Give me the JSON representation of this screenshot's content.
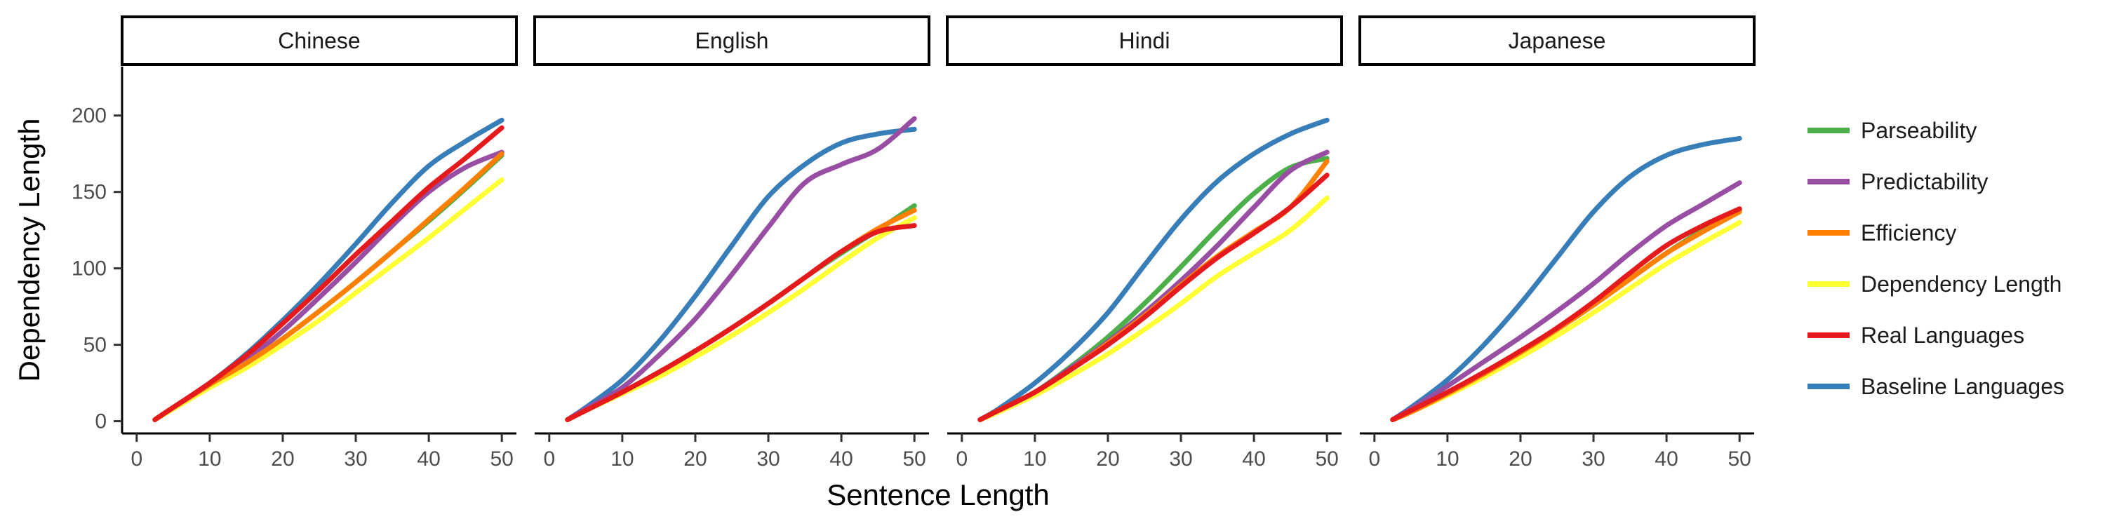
{
  "chart_data": {
    "type": "line",
    "xlabel": "Sentence Length",
    "ylabel": "Dependency Length",
    "xlim": [
      -2,
      52
    ],
    "ylim": [
      -8,
      232
    ],
    "x_ticks": [
      0,
      10,
      20,
      30,
      40,
      50
    ],
    "y_ticks": [
      0,
      50,
      100,
      150,
      200
    ],
    "grid": false,
    "legend_position": "right",
    "legend": [
      {
        "name": "Parseability",
        "color": "#4daf4a"
      },
      {
        "name": "Predictability",
        "color": "#984ea3"
      },
      {
        "name": "Efficiency",
        "color": "#ff7f00"
      },
      {
        "name": "Dependency Length",
        "color": "#ffff33"
      },
      {
        "name": "Real Languages",
        "color": "#e41a1c"
      },
      {
        "name": "Baseline Languages",
        "color": "#377eb8"
      }
    ],
    "draw_order": [
      "Baseline Languages",
      "Dependency Length",
      "Parseability",
      "Predictability",
      "Efficiency",
      "Real Languages"
    ],
    "x": [
      2.5,
      5,
      10,
      15,
      20,
      25,
      30,
      35,
      40,
      45,
      50
    ],
    "panels": [
      {
        "label": "Chinese",
        "series": [
          {
            "name": "Parseability",
            "values": [
              1,
              9,
              24,
              38,
              54,
              72,
              91,
              111,
              131,
              152,
              174
            ]
          },
          {
            "name": "Predictability",
            "values": [
              1,
              9,
              24,
              40,
              59,
              81,
              104,
              128,
              150,
              166,
              176
            ]
          },
          {
            "name": "Efficiency",
            "values": [
              1,
              9,
              24,
              38,
              54,
              72,
              91,
              111,
              132,
              153,
              175
            ]
          },
          {
            "name": "Dependency Length",
            "values": [
              1,
              8,
              22,
              35,
              50,
              66,
              84,
              102,
              120,
              139,
              158
            ]
          },
          {
            "name": "Real Languages",
            "values": [
              1,
              9,
              25,
              43,
              64,
              86,
              109,
              131,
              153,
              172,
              192
            ]
          },
          {
            "name": "Baseline Languages",
            "values": [
              1,
              9,
              25,
              44,
              66,
              90,
              116,
              143,
              167,
              183,
              197
            ]
          }
        ]
      },
      {
        "label": "English",
        "series": [
          {
            "name": "Parseability",
            "values": [
              1,
              7,
              19,
              32,
              46,
              61,
              77,
              94,
              110,
              125,
              141
            ]
          },
          {
            "name": "Predictability",
            "values": [
              1,
              8,
              22,
              43,
              67,
              96,
              127,
              156,
              168,
              178,
              198
            ]
          },
          {
            "name": "Efficiency",
            "values": [
              1,
              7,
              19,
              32,
              46,
              61,
              77,
              94,
              111,
              126,
              138
            ]
          },
          {
            "name": "Dependency Length",
            "values": [
              1,
              7,
              18,
              29,
              42,
              56,
              71,
              87,
              104,
              120,
              133
            ]
          },
          {
            "name": "Real Languages",
            "values": [
              1,
              7,
              19,
              32,
              46,
              61,
              77,
              94,
              111,
              124,
              128
            ]
          },
          {
            "name": "Baseline Languages",
            "values": [
              1,
              9,
              27,
              52,
              82,
              115,
              147,
              168,
              182,
              188,
              191
            ]
          }
        ]
      },
      {
        "label": "Hindi",
        "series": [
          {
            "name": "Parseability",
            "values": [
              1,
              7,
              19,
              36,
              55,
              77,
              101,
              126,
              149,
              166,
              172
            ]
          },
          {
            "name": "Predictability",
            "values": [
              1,
              7,
              19,
              35,
              52,
              71,
              92,
              115,
              140,
              164,
              176
            ]
          },
          {
            "name": "Efficiency",
            "values": [
              1,
              7,
              19,
              34,
              51,
              69,
              89,
              108,
              124,
              140,
              170
            ]
          },
          {
            "name": "Dependency Length",
            "values": [
              1,
              6,
              17,
              30,
              44,
              60,
              77,
              95,
              110,
              125,
              146
            ]
          },
          {
            "name": "Real Languages",
            "values": [
              1,
              7,
              19,
              34,
              50,
              68,
              88,
              107,
              123,
              140,
              161
            ]
          },
          {
            "name": "Baseline Languages",
            "values": [
              1,
              8,
              25,
              46,
              71,
              102,
              132,
              157,
              175,
              188,
              197
            ]
          }
        ]
      },
      {
        "label": "Japanese",
        "series": [
          {
            "name": "Parseability",
            "values": [
              1,
              6,
              18,
              31,
              45,
              60,
              76,
              93,
              110,
              125,
              138
            ]
          },
          {
            "name": "Predictability",
            "values": [
              1,
              8,
              23,
              39,
              55,
              72,
              90,
              110,
              128,
              142,
              156
            ]
          },
          {
            "name": "Efficiency",
            "values": [
              1,
              6,
              18,
              31,
              45,
              60,
              76,
              93,
              110,
              124,
              137
            ]
          },
          {
            "name": "Dependency Length",
            "values": [
              1,
              6,
              17,
              29,
              42,
              56,
              71,
              87,
              103,
              117,
              130
            ]
          },
          {
            "name": "Real Languages",
            "values": [
              1,
              7,
              19,
              32,
              46,
              61,
              78,
              97,
              115,
              128,
              139
            ]
          },
          {
            "name": "Baseline Languages",
            "values": [
              1,
              9,
              27,
              50,
              77,
              107,
              137,
              160,
              174,
              181,
              185
            ]
          }
        ]
      }
    ]
  }
}
